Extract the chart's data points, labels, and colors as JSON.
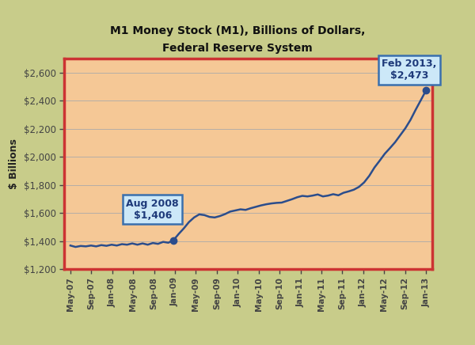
{
  "title_line1": "M1 Money Stock (M1), Billions of Dollars,",
  "title_line2": "Federal Reserve System",
  "ylabel": "$ Billions",
  "background_outer": "#c8cc8a",
  "background_inner": "#f5c896",
  "border_color": "#cc3333",
  "line_color": "#2b4d8c",
  "annotation1_label": "Aug 2008\n$1,406",
  "annotation2_label": "Feb 2013,\n$2,473",
  "annotation_box_facecolor": "#cce8f8",
  "annotation_border_color": "#3a6fad",
  "annotation_text_color": "#1e3a7a",
  "ylim": [
    1200,
    2700
  ],
  "yticks": [
    1200,
    1400,
    1600,
    1800,
    2000,
    2200,
    2400,
    2600
  ],
  "x_labels": [
    "May-07",
    "Sep-07",
    "Jan-08",
    "May-08",
    "Sep-08",
    "Jan-09",
    "May-09",
    "Sep-09",
    "Jan-10",
    "May-10",
    "Sep-10",
    "Jan-11",
    "May-11",
    "Sep-11",
    "Jan-12",
    "May-12",
    "Sep-12",
    "Jan-13"
  ],
  "data_months": [
    0,
    1,
    2,
    3,
    4,
    5,
    6,
    7,
    8,
    9,
    10,
    11,
    12,
    13,
    14,
    15,
    16,
    17,
    18,
    19,
    20,
    21,
    22,
    23,
    24,
    25,
    26,
    27,
    28,
    29,
    30,
    31,
    32,
    33,
    34,
    35,
    36,
    37,
    38,
    39,
    40,
    41,
    42,
    43,
    44,
    45,
    46,
    47,
    48,
    49,
    50,
    51,
    52,
    53,
    54,
    55,
    56,
    57,
    58,
    59,
    60,
    61,
    62,
    63,
    64,
    65,
    66,
    67,
    68,
    69
  ],
  "data_y": [
    1368,
    1358,
    1365,
    1362,
    1368,
    1362,
    1371,
    1366,
    1374,
    1368,
    1378,
    1374,
    1383,
    1374,
    1383,
    1374,
    1386,
    1380,
    1394,
    1388,
    1406,
    1450,
    1490,
    1535,
    1568,
    1590,
    1585,
    1572,
    1568,
    1578,
    1592,
    1610,
    1618,
    1626,
    1622,
    1634,
    1644,
    1654,
    1662,
    1668,
    1672,
    1674,
    1686,
    1698,
    1712,
    1722,
    1718,
    1724,
    1732,
    1718,
    1724,
    1734,
    1726,
    1744,
    1754,
    1766,
    1786,
    1818,
    1865,
    1924,
    1972,
    2022,
    2062,
    2104,
    2154,
    2204,
    2264,
    2336,
    2404,
    2473
  ]
}
